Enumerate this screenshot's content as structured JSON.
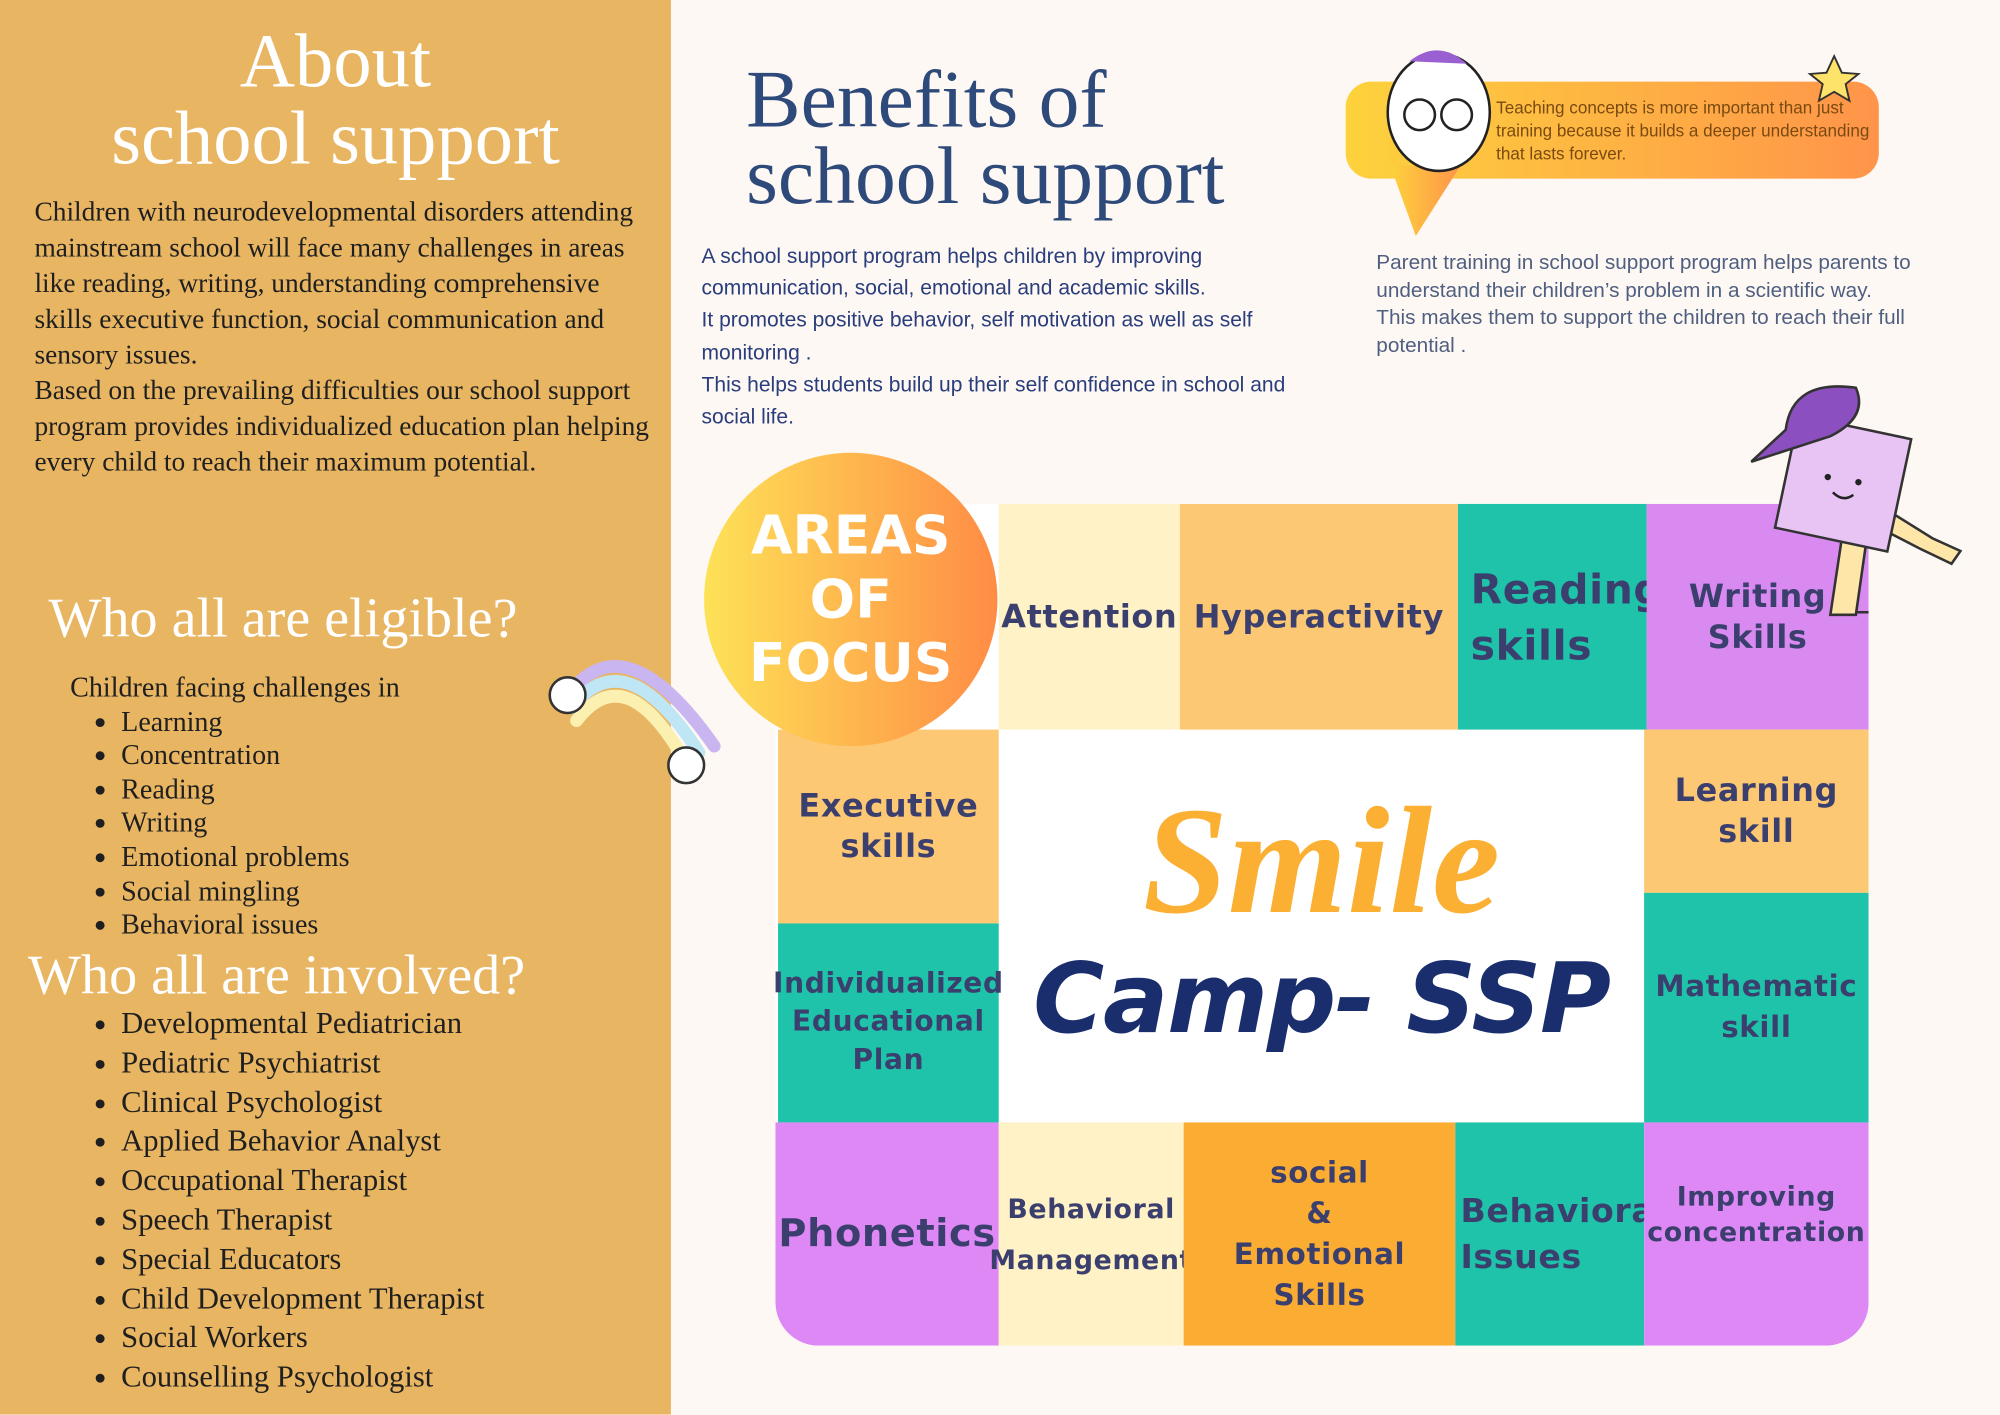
{
  "about": {
    "title": [
      "About",
      "school support"
    ],
    "paragraphs": [
      "Children with neurodevelopmental disorders attending mainstream school will face many challenges in areas like reading, writing, understanding comprehensive skills executive function, social communication and sensory issues.",
      "Based on the prevailing difficulties our school support program provides individualized education plan helping every child to reach their maximum potential."
    ]
  },
  "eligible": {
    "title": "Who all are eligible?",
    "lead": "Children facing challenges in",
    "items": [
      "Learning",
      "Concentration",
      "Reading",
      "Writing",
      "Emotional problems",
      "Social mingling",
      "Behavioral issues"
    ]
  },
  "involved": {
    "title": "Who all are involved?",
    "items": [
      "Developmental Pediatrician",
      "Pediatric Psychiatrist",
      "Clinical Psychologist",
      "Applied Behavior Analyst",
      "Occupational Therapist",
      "Speech Therapist",
      "Special Educators",
      "Child Development Therapist",
      "Social Workers",
      "Counselling Psychologist"
    ]
  },
  "benefits": {
    "title": [
      "Benefits of",
      "school support"
    ],
    "paragraphs": [
      "A school support program helps children by improving communication, social, emotional  and academic skills.",
      "It promotes positive behavior, self motivation as well as self monitoring .",
      "This helps students build up their self confidence in school and social  life."
    ]
  },
  "quote": "Teaching concepts is more important than just training because it builds a deeper understanding that lasts forever.",
  "parent_training": {
    "paragraphs": [
      "Parent training in school support program helps parents to understand their children’s problem in a scientific way.",
      "This makes them to  support the children to reach their full potential ."
    ]
  },
  "areas_of_focus": {
    "badge": [
      "AREAS",
      "OF",
      "FOCUS"
    ],
    "center": {
      "script": "Smile",
      "name": "Camp- SSP"
    },
    "tiles": [
      {
        "lines": [
          "Attention"
        ]
      },
      {
        "lines": [
          "Hyperactivity"
        ]
      },
      {
        "lines": [
          "Reading",
          "skills"
        ]
      },
      {
        "lines": [
          "Writing",
          "Skills"
        ]
      },
      {
        "lines": [
          "Executive",
          "skills"
        ]
      },
      {
        "lines": [
          "Learning",
          "skill"
        ]
      },
      {
        "lines": [
          "Individualized",
          "Educational",
          "Plan"
        ]
      },
      {
        "lines": [
          "Mathematic",
          "skill"
        ]
      },
      {
        "lines": [
          "Phonetics"
        ]
      },
      {
        "lines": [
          "Behavioral",
          "Management"
        ]
      },
      {
        "lines": [
          "social",
          "&",
          "Emotional Skills"
        ]
      },
      {
        "lines": [
          "Behavioral",
          "Issues"
        ]
      },
      {
        "lines": [
          "Improving",
          "concentration"
        ]
      }
    ]
  }
}
